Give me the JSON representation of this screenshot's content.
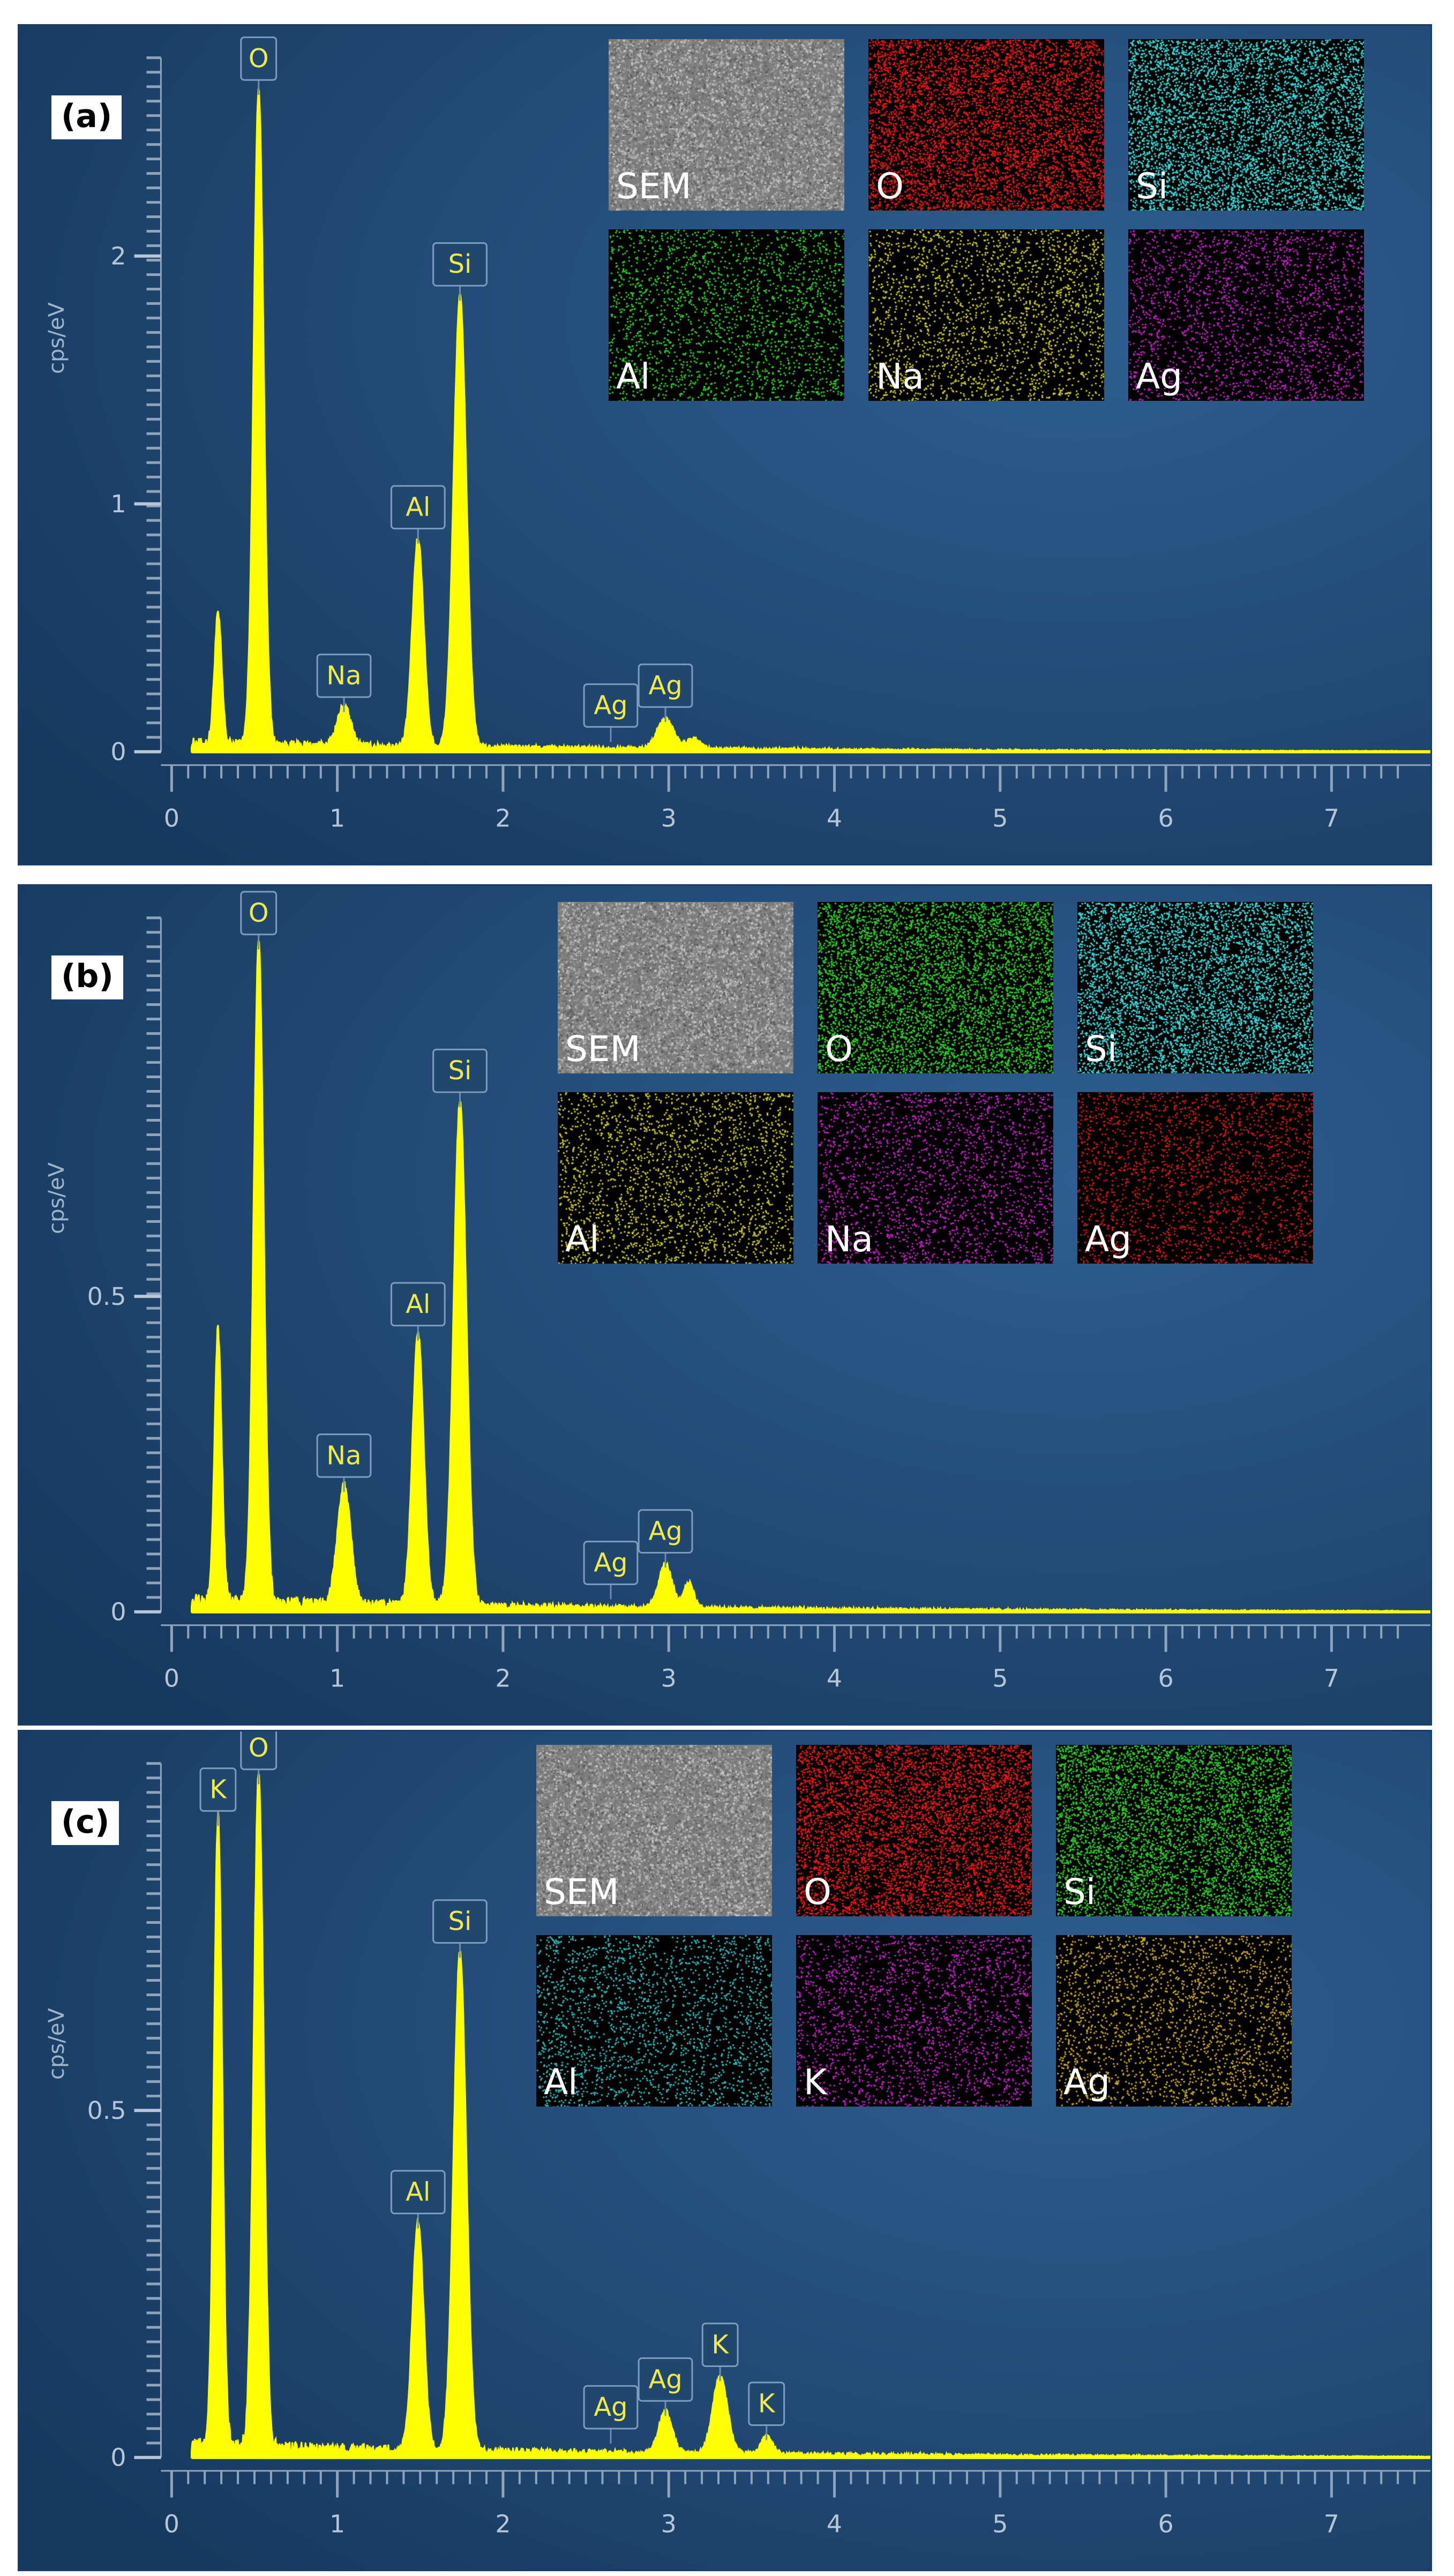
{
  "chart_data": [
    {
      "type": "line",
      "panel_label": "(a)",
      "ylabel": "cps/eV",
      "xlabel": "",
      "xlim": [
        0,
        7.4
      ],
      "ylim": [
        0,
        2.8
      ],
      "x_ticks": [
        "0",
        "1",
        "2",
        "3",
        "4",
        "5",
        "6",
        "7"
      ],
      "y_ticks": [
        {
          "v": 0,
          "t": "0"
        },
        {
          "v": 1,
          "t": "1"
        },
        {
          "v": 2,
          "t": "2"
        }
      ],
      "series": [
        {
          "color": "#ffff00",
          "peaks": [
            {
              "x": 0.28,
              "h": 0.52,
              "w": 0.022
            },
            {
              "x": 0.525,
              "h": 2.65,
              "w": 0.03
            },
            {
              "x": 1.04,
              "h": 0.16,
              "w": 0.04
            },
            {
              "x": 1.487,
              "h": 0.84,
              "w": 0.034
            },
            {
              "x": 1.74,
              "h": 1.82,
              "w": 0.038
            },
            {
              "x": 2.98,
              "h": 0.12,
              "w": 0.05
            },
            {
              "x": 3.15,
              "h": 0.04,
              "w": 0.04
            }
          ],
          "baseline": 0.04
        }
      ],
      "annotations": [
        {
          "text": "O",
          "x": 0.525,
          "y": 2.65
        },
        {
          "text": "Si",
          "x": 1.74,
          "y": 1.82
        },
        {
          "text": "Al",
          "x": 1.487,
          "y": 0.84
        },
        {
          "text": "Na",
          "x": 1.04,
          "y": 0.16
        },
        {
          "text": "Ag",
          "x": 2.65,
          "y": 0.04
        },
        {
          "text": "Ag",
          "x": 2.98,
          "y": 0.12
        }
      ],
      "maps": [
        {
          "label": "SEM",
          "color": "#8a8a8a",
          "type": "sem"
        },
        {
          "label": "O",
          "color": "#e81818",
          "type": "dots"
        },
        {
          "label": "Si",
          "color": "#3ad6d6",
          "type": "dots"
        },
        {
          "label": "Al",
          "color": "#2ec82e",
          "type": "dots"
        },
        {
          "label": "Na",
          "color": "#c8c822",
          "type": "dots"
        },
        {
          "label": "Ag",
          "color": "#c020c0",
          "type": "dots"
        }
      ]
    },
    {
      "type": "line",
      "panel_label": "(b)",
      "ylabel": "cps/eV",
      "xlabel": "",
      "xlim": [
        0,
        7.4
      ],
      "ylim": [
        0,
        1.1
      ],
      "x_ticks": [
        "0",
        "1",
        "2",
        "3",
        "4",
        "5",
        "6",
        "7"
      ],
      "y_ticks": [
        {
          "v": 0,
          "t": "0"
        },
        {
          "v": 0.5,
          "t": "0.5"
        }
      ],
      "series": [
        {
          "color": "#ffff00",
          "peaks": [
            {
              "x": 0.28,
              "h": 0.43,
              "w": 0.022
            },
            {
              "x": 0.525,
              "h": 1.05,
              "w": 0.03
            },
            {
              "x": 1.04,
              "h": 0.19,
              "w": 0.04
            },
            {
              "x": 1.487,
              "h": 0.43,
              "w": 0.034
            },
            {
              "x": 1.74,
              "h": 0.8,
              "w": 0.038
            },
            {
              "x": 2.98,
              "h": 0.07,
              "w": 0.04
            },
            {
              "x": 3.12,
              "h": 0.04,
              "w": 0.03
            }
          ],
          "baseline": 0.02
        }
      ],
      "annotations": [
        {
          "text": "O",
          "x": 0.525,
          "y": 1.05
        },
        {
          "text": "Si",
          "x": 1.74,
          "y": 0.8
        },
        {
          "text": "Al",
          "x": 1.487,
          "y": 0.43
        },
        {
          "text": "Na",
          "x": 1.04,
          "y": 0.19
        },
        {
          "text": "Ag",
          "x": 2.65,
          "y": 0.02
        },
        {
          "text": "Ag",
          "x": 2.98,
          "y": 0.07
        }
      ],
      "maps": [
        {
          "label": "SEM",
          "color": "#8a8a8a",
          "type": "sem"
        },
        {
          "label": "O",
          "color": "#2ec82e",
          "type": "dots"
        },
        {
          "label": "Si",
          "color": "#3ad6d6",
          "type": "dots"
        },
        {
          "label": "Al",
          "color": "#c8c822",
          "type": "dots"
        },
        {
          "label": "Na",
          "color": "#c020c0",
          "type": "dots"
        },
        {
          "label": "Ag",
          "color": "#d01818",
          "type": "dots"
        }
      ]
    },
    {
      "type": "line",
      "panel_label": "(c)",
      "ylabel": "cps/eV",
      "xlabel": "",
      "xlim": [
        0,
        7.6
      ],
      "ylim": [
        0,
        1.0
      ],
      "x_ticks": [
        "0",
        "1",
        "2",
        "3",
        "4",
        "5",
        "6",
        "7"
      ],
      "y_ticks": [
        {
          "v": 0,
          "t": "0"
        },
        {
          "v": 0.5,
          "t": "0.5"
        }
      ],
      "series": [
        {
          "color": "#ffff00",
          "peaks": [
            {
              "x": 0.28,
              "h": 0.91,
              "w": 0.025
            },
            {
              "x": 0.525,
              "h": 0.97,
              "w": 0.03
            },
            {
              "x": 1.487,
              "h": 0.33,
              "w": 0.034
            },
            {
              "x": 1.74,
              "h": 0.72,
              "w": 0.038
            },
            {
              "x": 2.98,
              "h": 0.06,
              "w": 0.04
            },
            {
              "x": 3.31,
              "h": 0.11,
              "w": 0.045
            },
            {
              "x": 3.59,
              "h": 0.025,
              "w": 0.035
            }
          ],
          "baseline": 0.02
        }
      ],
      "annotations": [
        {
          "text": "K",
          "x": 0.28,
          "y": 0.91
        },
        {
          "text": "O",
          "x": 0.525,
          "y": 0.97
        },
        {
          "text": "Si",
          "x": 1.74,
          "y": 0.72
        },
        {
          "text": "Al",
          "x": 1.487,
          "y": 0.33
        },
        {
          "text": "Ag",
          "x": 2.65,
          "y": 0.02
        },
        {
          "text": "Ag",
          "x": 2.98,
          "y": 0.06
        },
        {
          "text": "K",
          "x": 3.31,
          "y": 0.11
        },
        {
          "text": "K",
          "x": 3.59,
          "y": 0.025
        }
      ],
      "maps": [
        {
          "label": "SEM",
          "color": "#8a8a8a",
          "type": "sem"
        },
        {
          "label": "O",
          "color": "#e81818",
          "type": "dots"
        },
        {
          "label": "Si",
          "color": "#2ec82e",
          "type": "dots"
        },
        {
          "label": "Al",
          "color": "#2fb8b8",
          "type": "dots"
        },
        {
          "label": "K",
          "color": "#c020c0",
          "type": "dots"
        },
        {
          "label": "Ag",
          "color": "#c8a822",
          "type": "dots"
        }
      ]
    }
  ]
}
